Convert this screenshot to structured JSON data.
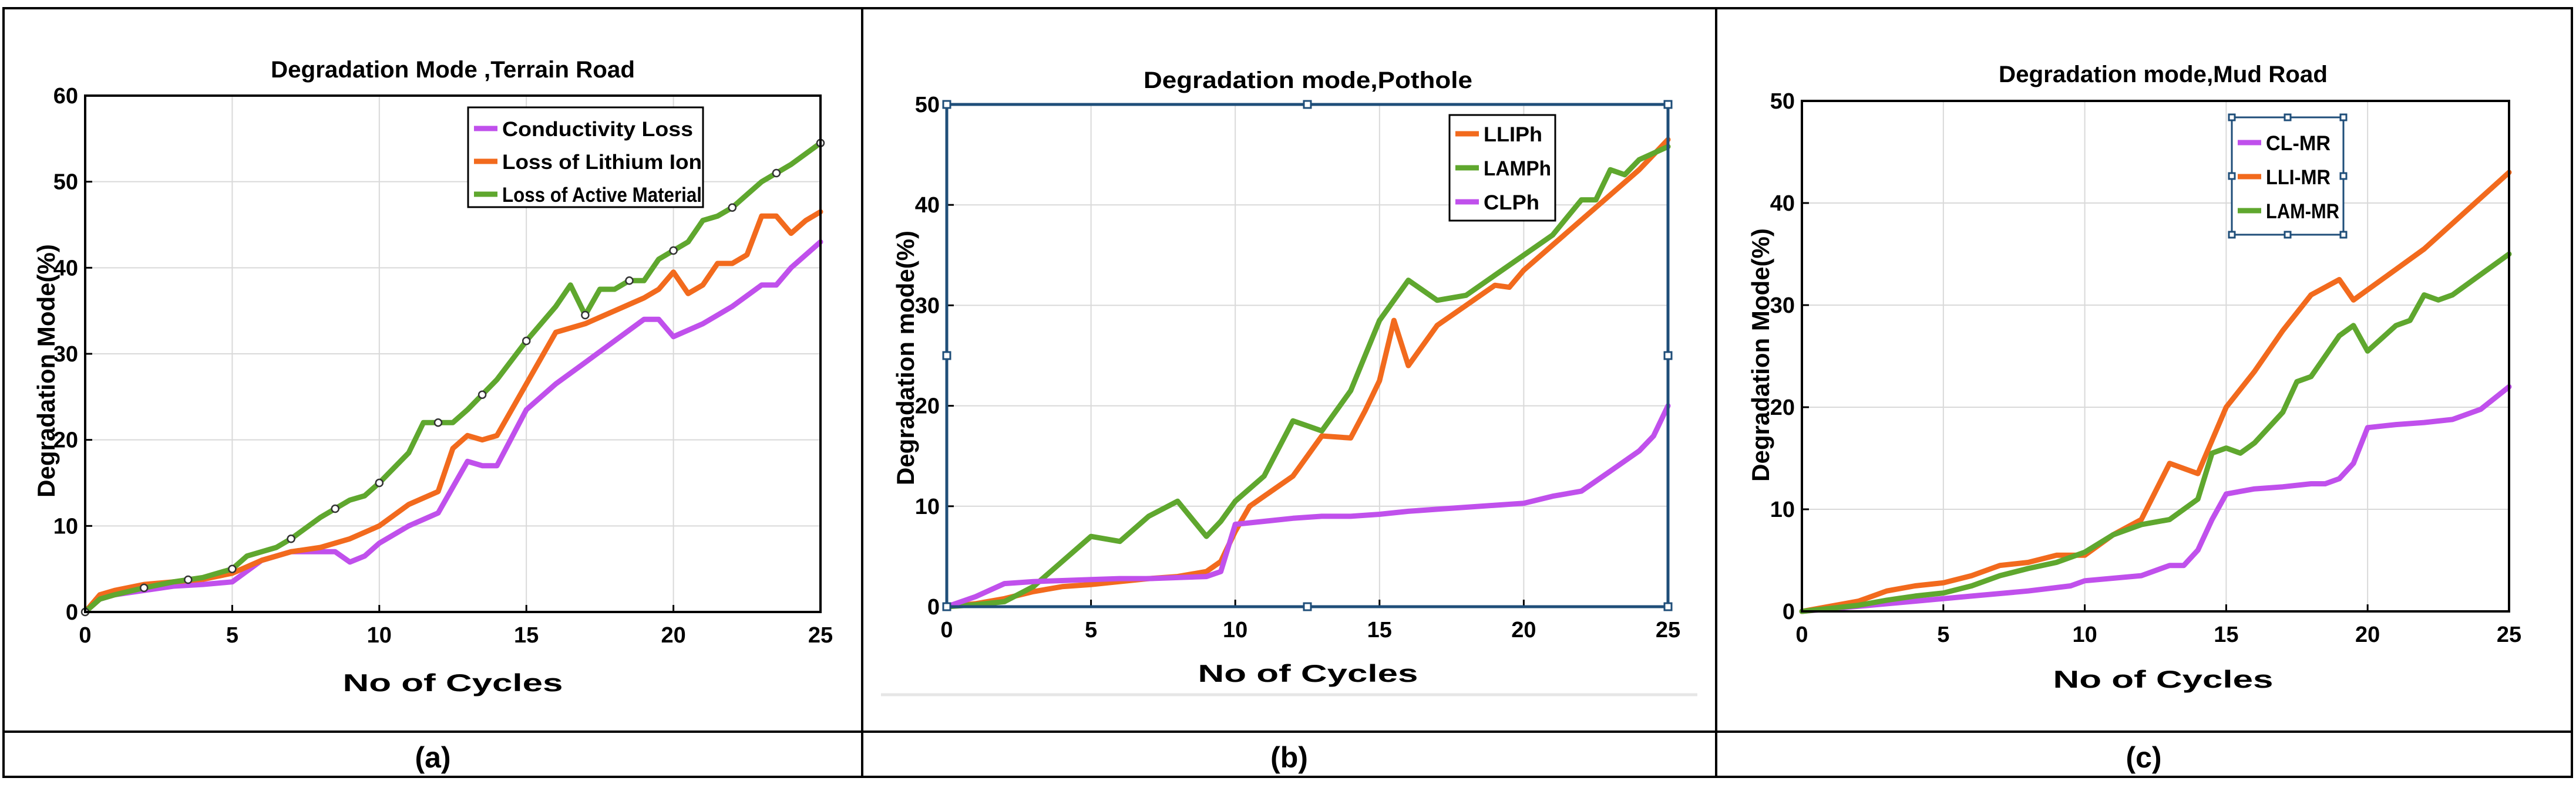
{
  "captions": [
    "(a)",
    "(b)",
    "(c)"
  ],
  "colors": {
    "purple": "#c050ec",
    "orange": "#f26a1d",
    "green": "#5fa72e",
    "selection": "#1f4e79"
  },
  "chart_data": [
    {
      "type": "line",
      "title": "Degradation Mode ,Terrain Road",
      "xlabel": "No of Cycles",
      "ylabel": "Degradation Mode(%)",
      "xlim": [
        0,
        25
      ],
      "ylim": [
        0,
        60
      ],
      "xticks": [
        0,
        5,
        10,
        15,
        20,
        25
      ],
      "yticks": [
        0,
        10,
        20,
        30,
        40,
        50,
        60
      ],
      "grid": true,
      "legend_position": "top-right",
      "series": [
        {
          "name": "Conductivity Loss",
          "color": "#c050ec",
          "x": [
            0,
            0.5,
            1,
            2,
            3,
            4,
            5,
            6,
            7,
            8,
            8.5,
            9,
            9.5,
            10,
            11,
            12,
            13,
            13.5,
            14,
            15,
            16,
            17,
            18,
            19,
            19.5,
            20,
            21,
            22,
            23,
            23.5,
            24,
            25
          ],
          "y": [
            0,
            1.5,
            2,
            2.5,
            3,
            3.2,
            3.5,
            6,
            7,
            7,
            7,
            5.8,
            6.5,
            8,
            10,
            11.5,
            17.5,
            17,
            17,
            23.5,
            26.5,
            29,
            31.5,
            34,
            34,
            32,
            33.5,
            35.5,
            38,
            38,
            40,
            43
          ]
        },
        {
          "name": "Loss of Lithium Ion",
          "color": "#f26a1d",
          "x": [
            0,
            0.5,
            1,
            2,
            3,
            4,
            5,
            6,
            7,
            8,
            9,
            10,
            11,
            12,
            12.5,
            13,
            13.5,
            14,
            15,
            16,
            17,
            18,
            19,
            19.5,
            20,
            20.5,
            21,
            21.5,
            22,
            22.5,
            23,
            23.5,
            24,
            24.5,
            25
          ],
          "y": [
            0,
            2,
            2.5,
            3.2,
            3.5,
            3.8,
            4.5,
            6,
            7,
            7.5,
            8.5,
            10,
            12.5,
            14,
            19,
            20.5,
            20,
            20.5,
            26.5,
            32.5,
            33.5,
            35,
            36.5,
            37.5,
            39.5,
            37,
            38,
            40.5,
            40.5,
            41.5,
            46,
            46,
            44,
            45.5,
            46.5
          ]
        },
        {
          "name": "Loss of Active Material",
          "color": "#5fa72e",
          "x": [
            0,
            0.5,
            1,
            2,
            3,
            4,
            5,
            5.5,
            6,
            6.5,
            7,
            8,
            9,
            9.5,
            10,
            11,
            11.5,
            12,
            12.5,
            13,
            14,
            15,
            16,
            16.5,
            17,
            17.5,
            18,
            18.5,
            19,
            19.5,
            20,
            20.5,
            21,
            21.5,
            22,
            23,
            24,
            25
          ],
          "y": [
            0,
            1.5,
            2,
            2.8,
            3.5,
            4,
            5,
            6.5,
            7,
            7.5,
            8.5,
            11,
            13,
            13.5,
            15,
            18.5,
            22,
            22,
            22,
            23.5,
            27,
            31.5,
            35.5,
            38,
            34.5,
            37.5,
            37.5,
            38.5,
            38.5,
            41,
            42,
            43,
            45.5,
            46,
            47,
            50,
            52,
            54.5
          ]
        }
      ]
    },
    {
      "type": "line",
      "title": "Degradation mode,Pothole",
      "xlabel": "No of Cycles",
      "ylabel": "Degradation mode(%)",
      "xlim": [
        0,
        25
      ],
      "ylim": [
        0,
        50
      ],
      "xticks": [
        0,
        5,
        10,
        15,
        20,
        25
      ],
      "yticks": [
        0,
        10,
        20,
        30,
        40,
        50
      ],
      "grid": true,
      "legend_position": "top-right",
      "series": [
        {
          "name": "LLIPh",
          "color": "#f26a1d",
          "x": [
            0,
            1,
            2,
            3,
            4,
            5,
            6,
            7,
            8,
            9,
            9.5,
            10,
            10.5,
            11,
            12,
            12.5,
            13,
            14,
            14.5,
            15,
            15.5,
            16,
            17,
            18,
            19,
            19.5,
            20,
            21,
            22,
            23,
            24,
            25
          ],
          "y": [
            0,
            0.3,
            0.8,
            1.5,
            2,
            2.2,
            2.5,
            2.8,
            3,
            3.5,
            4.5,
            7.5,
            10,
            11,
            13,
            15,
            17,
            16.8,
            19.5,
            22.5,
            28.5,
            24,
            28,
            30,
            32,
            31.8,
            33.5,
            36,
            38.5,
            41,
            43.5,
            46.5
          ]
        },
        {
          "name": "LAMPh",
          "color": "#5fa72e",
          "x": [
            0,
            1,
            2,
            3,
            4,
            5,
            6,
            7,
            8,
            9,
            9.5,
            10,
            11,
            12,
            12.5,
            13,
            14,
            15,
            16,
            17,
            18,
            19,
            20,
            21,
            22,
            22.5,
            23,
            23.5,
            24,
            25
          ],
          "y": [
            0,
            0.2,
            0.5,
            2,
            4.5,
            7,
            6.5,
            9,
            10.5,
            7,
            8.5,
            10.5,
            13,
            18.5,
            18,
            17.5,
            21.5,
            28.5,
            32.5,
            30.5,
            31,
            33,
            35,
            37,
            40.5,
            40.5,
            43.5,
            43,
            44.5,
            45.8
          ]
        },
        {
          "name": "CLPh",
          "color": "#c050ec",
          "x": [
            0,
            1,
            2,
            3,
            4,
            5,
            6,
            7,
            8,
            9,
            9.5,
            10,
            11,
            12,
            13,
            14,
            15,
            16,
            17,
            18,
            19,
            20,
            21,
            22,
            22.5,
            23,
            24,
            24.5,
            25
          ],
          "y": [
            0,
            1,
            2.3,
            2.5,
            2.6,
            2.7,
            2.8,
            2.8,
            2.9,
            3,
            3.5,
            8.2,
            8.5,
            8.8,
            9,
            9,
            9.2,
            9.5,
            9.7,
            9.9,
            10.1,
            10.3,
            11,
            11.5,
            12.5,
            13.5,
            15.5,
            17,
            20
          ]
        }
      ]
    },
    {
      "type": "line",
      "title": "Degradation mode,Mud Road",
      "xlabel": "No of Cycles",
      "ylabel": "Degradation Mode(%)",
      "xlim": [
        0,
        25
      ],
      "ylim": [
        0,
        50
      ],
      "xticks": [
        0,
        5,
        10,
        15,
        20,
        25
      ],
      "yticks": [
        0,
        10,
        20,
        30,
        40,
        50
      ],
      "grid": true,
      "legend_position": "top-left",
      "series": [
        {
          "name": "CL-MR",
          "color": "#c050ec",
          "x": [
            0,
            2,
            4,
            6,
            8,
            9.5,
            10,
            12,
            13,
            13.5,
            14,
            14.5,
            15,
            16,
            17,
            18,
            18.5,
            19,
            19.5,
            20,
            21,
            22,
            23,
            24,
            25
          ],
          "y": [
            0,
            0.5,
            1,
            1.5,
            2,
            2.5,
            3,
            3.5,
            4.5,
            4.5,
            6,
            9,
            11.5,
            12,
            12.2,
            12.5,
            12.5,
            13,
            14.5,
            18,
            18.3,
            18.5,
            18.8,
            19.8,
            22
          ]
        },
        {
          "name": "LLI-MR",
          "color": "#f26a1d",
          "x": [
            0,
            1,
            2,
            3,
            4,
            5,
            6,
            7,
            8,
            9,
            10,
            11,
            12,
            13,
            14,
            15,
            16,
            17,
            18,
            19,
            19.5,
            20,
            21,
            22,
            23,
            24,
            25
          ],
          "y": [
            0,
            0.5,
            1,
            2,
            2.5,
            2.8,
            3.5,
            4.5,
            4.8,
            5.5,
            5.5,
            7.5,
            9,
            14.5,
            13.5,
            20,
            23.5,
            27.5,
            31,
            32.5,
            30.5,
            31.5,
            33.5,
            35.5,
            38,
            40.5,
            43
          ]
        },
        {
          "name": "LAM-MR",
          "color": "#5fa72e",
          "x": [
            0,
            1,
            2,
            3,
            4,
            5,
            6,
            7,
            8,
            9,
            10,
            11,
            12,
            13,
            14,
            14.5,
            15,
            15.5,
            16,
            17,
            17.5,
            18,
            18.5,
            19,
            19.5,
            20,
            21,
            21.5,
            22,
            22.5,
            23,
            24,
            25
          ],
          "y": [
            0,
            0.3,
            0.6,
            1.1,
            1.5,
            1.8,
            2.5,
            3.5,
            4.2,
            4.8,
            5.8,
            7.5,
            8.5,
            9,
            11,
            15.5,
            16,
            15.5,
            16.5,
            19.5,
            22.5,
            23,
            25,
            27,
            28,
            25.5,
            28,
            28.5,
            31,
            30.5,
            31,
            33,
            35
          ]
        }
      ]
    }
  ]
}
